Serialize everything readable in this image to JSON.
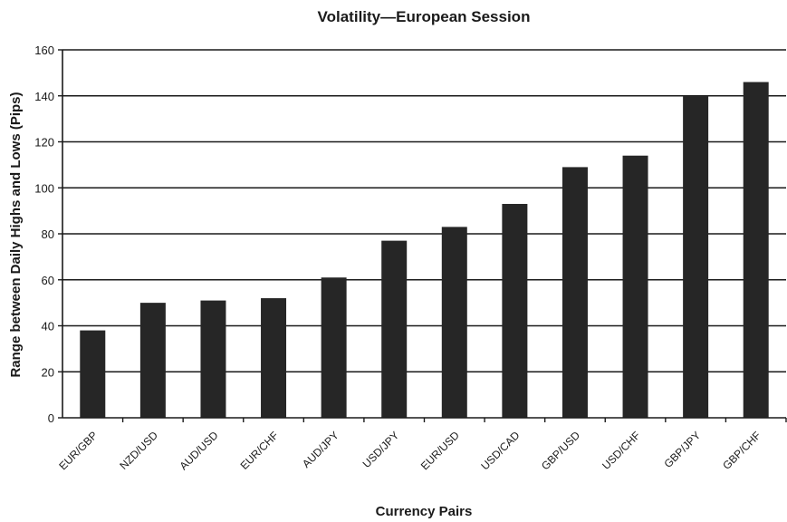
{
  "chart_data": {
    "type": "bar",
    "title": "Volatility—European Session",
    "xlabel": "Currency Pairs",
    "ylabel": "Range between Daily Highs and Lows (Pips)",
    "categories": [
      "EUR/GBP",
      "NZD/USD",
      "AUD/USD",
      "EUR/CHF",
      "AUD/JPY",
      "USD/JPY",
      "EUR/USD",
      "USD/CAD",
      "GBP/USD",
      "USD/CHF",
      "GBP/JPY",
      "GBP/CHF"
    ],
    "values": [
      38,
      50,
      51,
      52,
      61,
      77,
      83,
      93,
      109,
      114,
      140,
      146
    ],
    "ylim": [
      0,
      160
    ],
    "yticks": [
      0,
      20,
      40,
      60,
      80,
      100,
      120,
      140,
      160
    ],
    "grid": true,
    "legend": "none",
    "colors": {
      "bar": "#262626",
      "grid": "#1a1a1a",
      "axis": "#1a1a1a"
    }
  }
}
